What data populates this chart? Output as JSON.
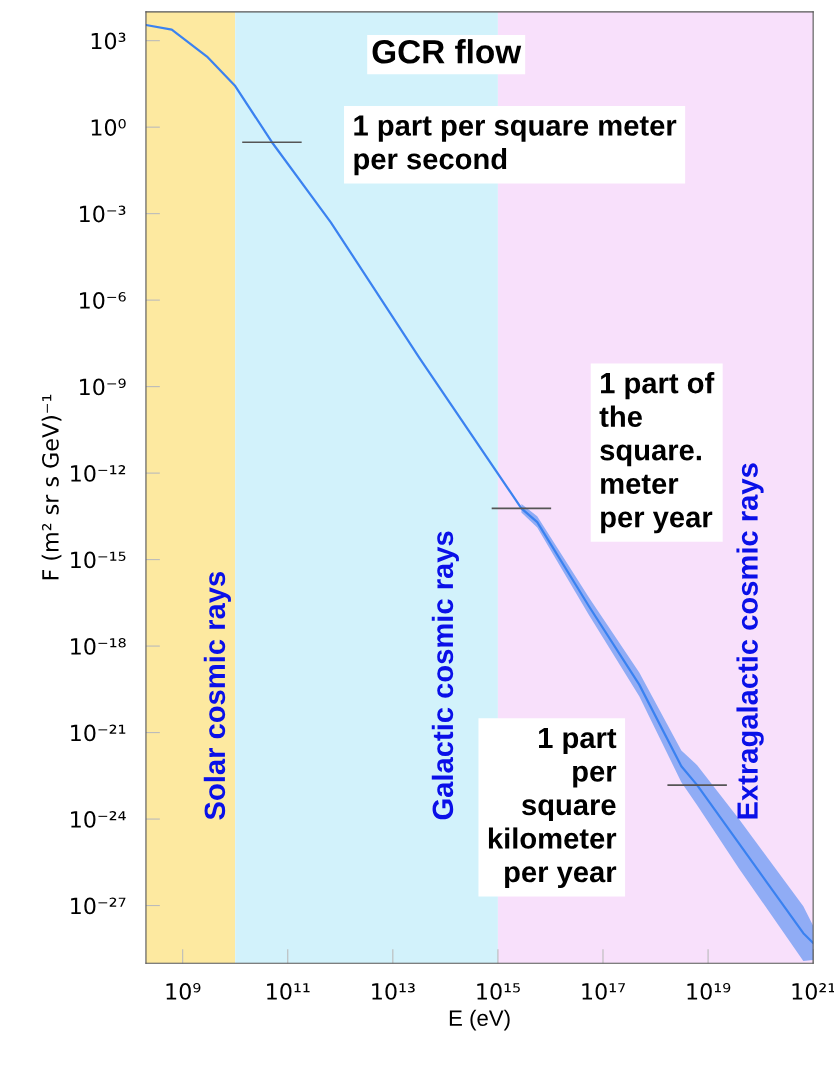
{
  "chart_data": {
    "type": "line",
    "title": "GCR flow",
    "xlabel": "E (eV)",
    "ylabel": "F (m² sr s GeV)⁻¹",
    "log": "xy",
    "grid": false,
    "legend": false,
    "x": [
      200000000.0,
      620000000.0,
      2900000000.0,
      9800000000.0,
      50000000000.0,
      660000000000.0,
      32000000000000.0,
      2800000000000000.0,
      5600000000000000.0,
      5.4e+16,
      4.9e+17,
      3.1e+18,
      6.2e+18,
      3.9e+19,
      6.5e+20,
      1e+21
    ],
    "series": [
      {
        "color": "#3b82f0",
        "values": [
          3500.0,
          2400.0,
          280.0,
          28,
          0.3,
          0.0005,
          1e-08,
          6e-14,
          2e-14,
          2.4e-17,
          4.6e-20,
          6.8e-23,
          1.5e-23,
          1.4e-25,
          1.1e-28,
          5e-29
        ],
        "lower": [
          null,
          null,
          null,
          null,
          null,
          null,
          null,
          4.3e-14,
          1.3e-14,
          1.2e-17,
          1.8e-20,
          1.9e-23,
          3e-24,
          1.9e-26,
          1.2e-29,
          1.3e-29
        ],
        "upper": [
          null,
          null,
          null,
          null,
          null,
          null,
          null,
          8.5e-14,
          3.2e-14,
          4.8e-17,
          1.2e-19,
          2.4e-22,
          7.4e-23,
          9.8e-25,
          9.5e-28,
          2e-28
        ]
      }
    ],
    "xlim": [
      200000000.0,
      1e+21
    ],
    "xticks": [
      {
        "value": 1000000000.0,
        "label": "10⁹"
      },
      {
        "value": 100000000000.0,
        "label": "10¹¹"
      },
      {
        "value": 10000000000000.0,
        "label": "10¹³"
      },
      {
        "value": 1000000000000000.0,
        "label": "10¹⁵"
      },
      {
        "value": 1e+17,
        "label": "10¹⁷"
      },
      {
        "value": 1e+19,
        "label": "10¹⁹"
      },
      {
        "value": 1e+21,
        "label": "10²¹"
      }
    ],
    "ylim": [
      1e-29,
      10000.0
    ],
    "yticks": [
      {
        "value": 1000.0,
        "label": "10³"
      },
      {
        "value": 1,
        "label": "10⁰"
      },
      {
        "value": 0.001,
        "label": "10⁻³"
      },
      {
        "value": 1e-06,
        "label": "10⁻⁶"
      },
      {
        "value": 1e-09,
        "label": "10⁻⁹"
      },
      {
        "value": 1e-12,
        "label": "10⁻¹²"
      },
      {
        "value": 1e-15,
        "label": "10⁻¹⁵"
      },
      {
        "value": 1e-18,
        "label": "10⁻¹⁸"
      },
      {
        "value": 1e-21,
        "label": "10⁻²¹"
      },
      {
        "value": 1e-24,
        "label": "10⁻²⁴"
      },
      {
        "value": 1e-27,
        "label": "10⁻²⁷"
      }
    ],
    "bands": [
      {
        "axis": "x",
        "from": 200000000.0,
        "to": 10000000000.0,
        "label": "Solar cosmic rays",
        "color": "#fde9a0"
      },
      {
        "axis": "x",
        "from": 10000000000.0,
        "to": 1000000000000000.0,
        "label": "Galactic cosmic rays",
        "color": "#d2f2fb"
      },
      {
        "axis": "x",
        "from": 1000000000000000.0,
        "to": 1e+21,
        "label": "Extragalactic cosmic rays",
        "color": "#f8e0fb"
      }
    ],
    "annotations": [
      {
        "text": "1 part per square meter\nper second",
        "x": 50000000000.0,
        "y": 0.3
      },
      {
        "text": "1 part of\nthe\nsquare.\nmeter\nper year",
        "x": 2800000000000000.0,
        "y": 6e-14
      },
      {
        "text": "1 part\nper\nsquare\nkilometer\nper year",
        "x": 6.2e+18,
        "y": 1.5e-23
      }
    ]
  }
}
